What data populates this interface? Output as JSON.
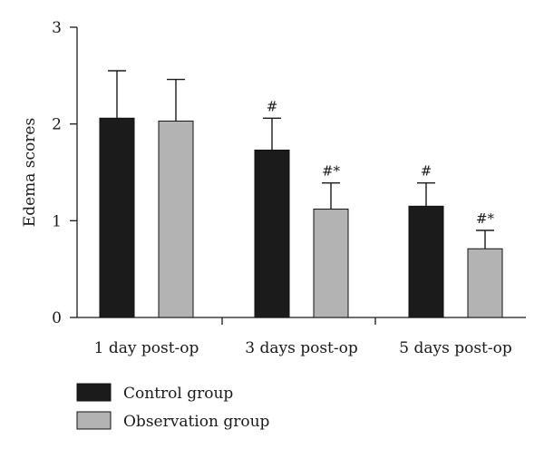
{
  "chart_data": {
    "type": "bar",
    "ylabel": "Edema scores",
    "xlabel": "",
    "ylim": [
      0,
      3
    ],
    "yticks": [
      0,
      1,
      2,
      3
    ],
    "categories": [
      "1 day post-op",
      "3 days post-op",
      "5 days post-op"
    ],
    "series": [
      {
        "name": "Control group",
        "color": "#1b1b1b",
        "values": [
          2.06,
          1.73,
          1.15
        ],
        "errors": [
          0.49,
          0.33,
          0.24
        ],
        "annotations": [
          "",
          "#",
          "#"
        ]
      },
      {
        "name": "Observation group",
        "color": "#b3b3b3",
        "values": [
          2.03,
          1.12,
          0.71
        ],
        "errors": [
          0.43,
          0.27,
          0.19
        ],
        "annotations": [
          "",
          "#*",
          "#*"
        ]
      }
    ],
    "legend_position": "bottom-left",
    "grid": false
  }
}
